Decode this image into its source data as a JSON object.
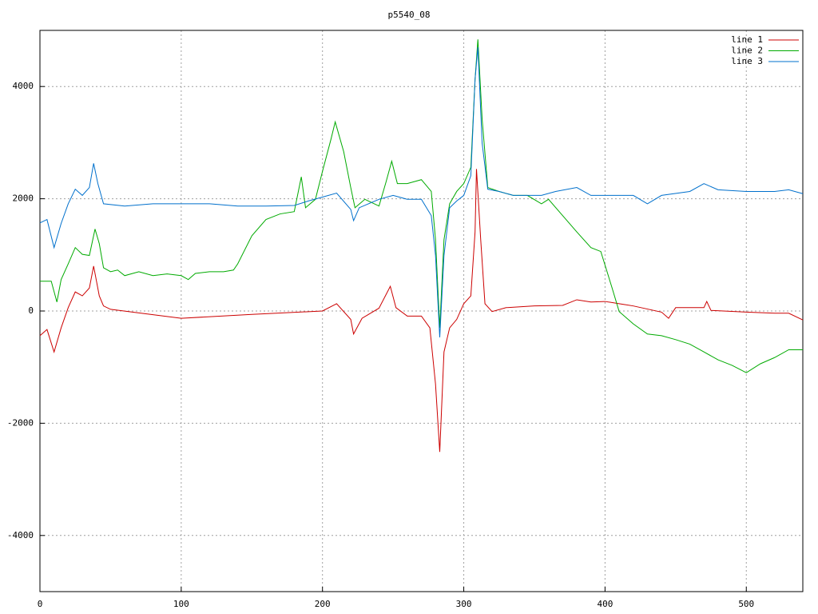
{
  "chart_data": {
    "type": "line",
    "title": "p5540_08",
    "xlim": [
      0,
      540
    ],
    "ylim": [
      -5000,
      5000
    ],
    "xticks": [
      0,
      100,
      200,
      300,
      400,
      500
    ],
    "yticks": [
      -4000,
      -2000,
      0,
      2000,
      4000
    ],
    "grid": true,
    "legend": "top-right",
    "series": [
      {
        "name": "line 1",
        "color": "#cc0000",
        "x": [
          0,
          5,
          10,
          15,
          20,
          25,
          30,
          35,
          38,
          42,
          45,
          50,
          100,
          150,
          200,
          210,
          220,
          222,
          228,
          240,
          248,
          252,
          260,
          270,
          276,
          280,
          283,
          286,
          290,
          295,
          300,
          305,
          308,
          309,
          312,
          315,
          320,
          330,
          350,
          370,
          380,
          390,
          400,
          410,
          420,
          440,
          445,
          450,
          470,
          472,
          475,
          500,
          520,
          530,
          540
        ],
        "values": [
          -440,
          -330,
          -730,
          -300,
          60,
          340,
          270,
          410,
          800,
          270,
          90,
          30,
          -130,
          -60,
          0,
          130,
          -150,
          -410,
          -130,
          50,
          440,
          60,
          -90,
          -90,
          -300,
          -1300,
          -2510,
          -730,
          -300,
          -150,
          130,
          270,
          1410,
          2530,
          1270,
          130,
          -10,
          60,
          90,
          100,
          200,
          160,
          170,
          130,
          90,
          -20,
          -130,
          60,
          60,
          170,
          10,
          -20,
          -40,
          -40,
          -160
        ]
      },
      {
        "name": "line 2",
        "color": "#00aa00",
        "x": [
          0,
          8,
          12,
          15,
          20,
          25,
          30,
          35,
          39,
          42,
          45,
          50,
          55,
          60,
          70,
          80,
          90,
          100,
          105,
          110,
          120,
          130,
          137,
          140,
          150,
          160,
          170,
          180,
          185,
          188,
          195,
          200,
          206,
          209,
          215,
          220,
          223,
          230,
          240,
          245,
          249,
          253,
          260,
          270,
          277,
          280,
          283,
          286,
          290,
          295,
          300,
          305,
          308,
          310,
          313,
          317,
          325,
          335,
          345,
          355,
          360,
          370,
          380,
          390,
          397,
          405,
          410,
          420,
          430,
          440,
          450,
          460,
          470,
          480,
          490,
          500,
          510,
          520,
          530,
          540
        ],
        "values": [
          530,
          530,
          160,
          560,
          840,
          1130,
          1010,
          990,
          1460,
          1200,
          770,
          700,
          730,
          630,
          700,
          630,
          660,
          630,
          560,
          670,
          700,
          700,
          730,
          840,
          1340,
          1630,
          1730,
          1770,
          2390,
          1840,
          1990,
          2490,
          3060,
          3370,
          2840,
          2200,
          1840,
          1990,
          1870,
          2300,
          2670,
          2270,
          2270,
          2340,
          2130,
          1270,
          -300,
          1270,
          1910,
          2130,
          2270,
          2560,
          4130,
          4840,
          3420,
          2200,
          2130,
          2060,
          2060,
          1910,
          1990,
          1700,
          1410,
          1130,
          1060,
          410,
          -10,
          -230,
          -410,
          -440,
          -510,
          -590,
          -730,
          -870,
          -970,
          -1100,
          -940,
          -830,
          -690,
          -690
        ]
      },
      {
        "name": "line 3",
        "color": "#0070cc",
        "x": [
          0,
          5,
          10,
          15,
          20,
          25,
          30,
          35,
          38,
          41,
          45,
          60,
          80,
          100,
          120,
          140,
          160,
          180,
          190,
          200,
          210,
          220,
          222,
          226,
          240,
          250,
          260,
          270,
          277,
          280,
          283,
          286,
          290,
          295,
          300,
          305,
          308,
          310,
          313,
          317,
          325,
          335,
          345,
          355,
          365,
          380,
          390,
          400,
          420,
          430,
          440,
          460,
          470,
          480,
          500,
          520,
          530,
          540
        ],
        "values": [
          1570,
          1630,
          1130,
          1560,
          1910,
          2170,
          2060,
          2200,
          2630,
          2270,
          1910,
          1870,
          1910,
          1910,
          1910,
          1870,
          1870,
          1880,
          1960,
          2030,
          2100,
          1810,
          1610,
          1840,
          1990,
          2060,
          1990,
          1990,
          1700,
          990,
          -470,
          990,
          1840,
          1960,
          2060,
          2410,
          4130,
          4700,
          2990,
          2170,
          2130,
          2060,
          2060,
          2060,
          2130,
          2200,
          2060,
          2060,
          2060,
          1910,
          2060,
          2130,
          2270,
          2160,
          2130,
          2130,
          2160,
          2090
        ]
      }
    ]
  }
}
